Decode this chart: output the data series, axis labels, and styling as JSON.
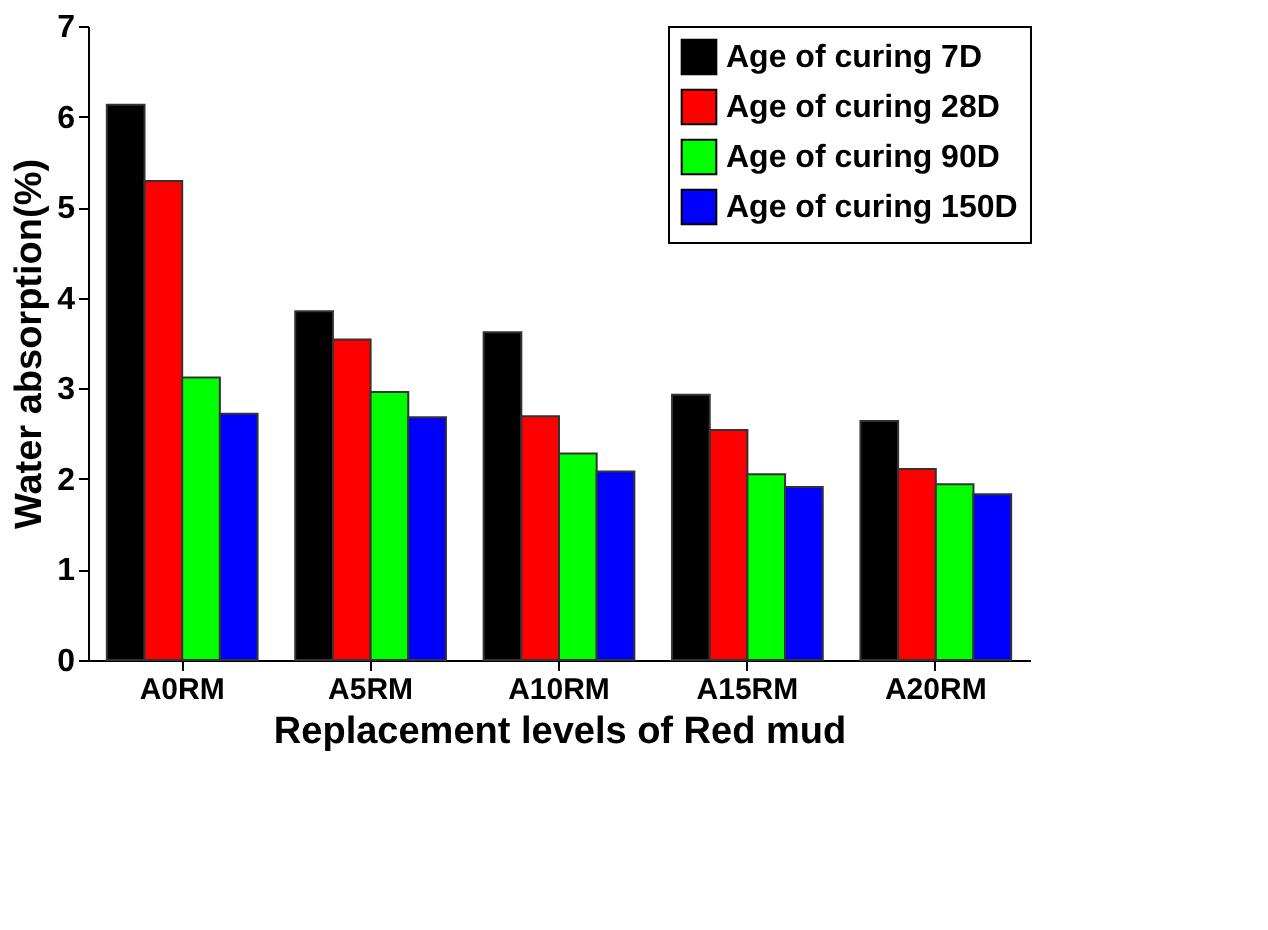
{
  "chart_data": {
    "type": "bar",
    "xlabel": "Replacement levels of Red mud",
    "ylabel": "Water absorption(%)",
    "categories": [
      "A0RM",
      "A5RM",
      "A10RM",
      "A15RM",
      "A20RM"
    ],
    "series": [
      {
        "name": "Age of curing 7D",
        "color": "#000000",
        "values": [
          6.13,
          3.85,
          3.62,
          2.93,
          2.64
        ]
      },
      {
        "name": "Age of curing 28D",
        "color": "#ff0000",
        "values": [
          5.29,
          3.54,
          2.69,
          2.54,
          2.11
        ]
      },
      {
        "name": "Age of curing 90D",
        "color": "#00ff00",
        "values": [
          3.12,
          2.96,
          2.28,
          2.05,
          1.94
        ]
      },
      {
        "name": "Age of curing 150D",
        "color": "#0000ff",
        "values": [
          2.72,
          2.68,
          2.08,
          1.91,
          1.83
        ]
      }
    ],
    "ylim": [
      0,
      7
    ],
    "yticks": [
      0,
      1,
      2,
      3,
      4,
      5,
      6,
      7
    ],
    "grid": false,
    "legend": "top right"
  }
}
